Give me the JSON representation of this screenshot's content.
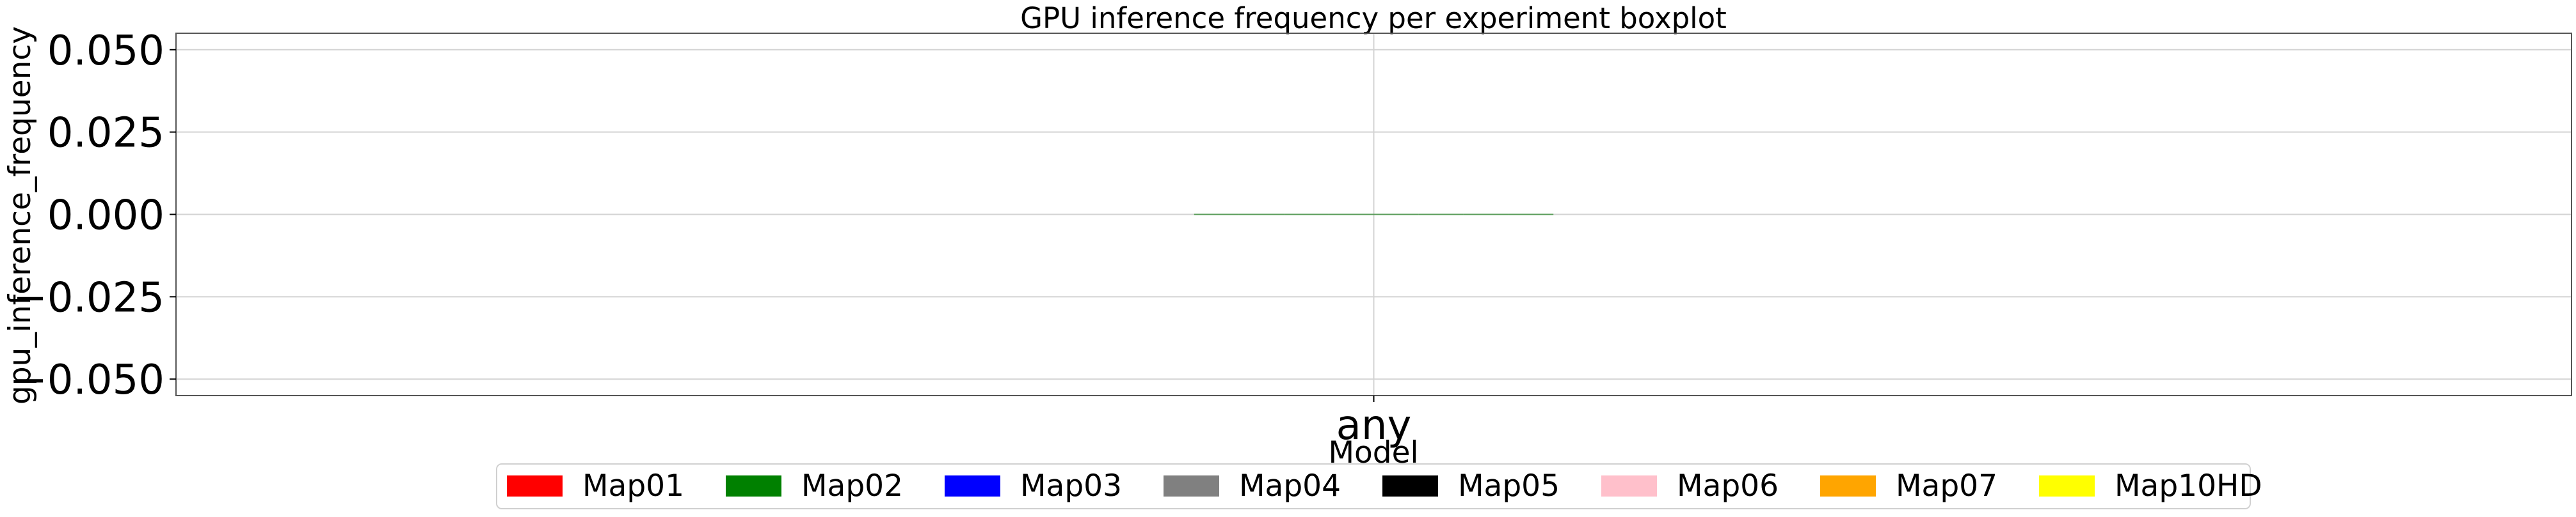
{
  "chart_data": {
    "type": "boxplot",
    "title": "GPU inference frequency per experiment boxplot",
    "xlabel": "Model",
    "ylabel": "gpu_inference_frequency",
    "categories": [
      "any"
    ],
    "ylim": [
      -0.055,
      0.055
    ],
    "yticks": [
      0.05,
      0.025,
      0.0,
      -0.025,
      -0.05
    ],
    "ytick_labels": [
      "0.050",
      "0.025",
      "0.000",
      "−0.025",
      "−0.050"
    ],
    "grid": true,
    "legend_placement": "bottom-center",
    "series": [
      {
        "name": "Map01",
        "color": "#ff0000",
        "values": [
          0
        ]
      },
      {
        "name": "Map02",
        "color": "#008000",
        "values": [
          0
        ]
      },
      {
        "name": "Map03",
        "color": "#0000ff",
        "values": [
          0
        ]
      },
      {
        "name": "Map04",
        "color": "#808080",
        "values": [
          0
        ]
      },
      {
        "name": "Map05",
        "color": "#000000",
        "values": [
          0
        ]
      },
      {
        "name": "Map06",
        "color": "#ffc0cb",
        "values": [
          0
        ]
      },
      {
        "name": "Map07",
        "color": "#ffa500",
        "values": [
          0
        ]
      },
      {
        "name": "Map10HD",
        "color": "#ffff00",
        "values": [
          0
        ]
      }
    ]
  }
}
